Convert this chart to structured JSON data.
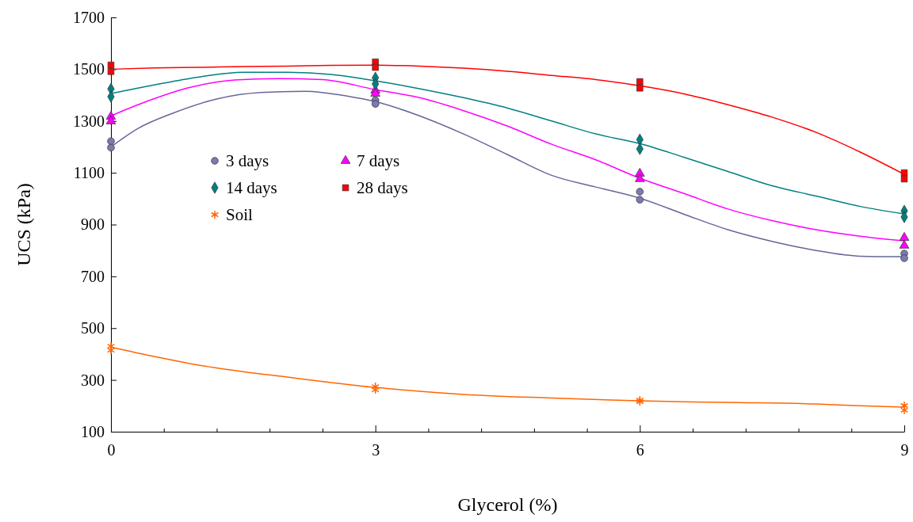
{
  "chart_data": {
    "type": "scatter",
    "xlabel": "Glycerol (%)",
    "ylabel": "UCS (kPa)",
    "xlim": [
      0,
      9
    ],
    "xticks": [
      0,
      {
        "value": 0.6,
        "label": null
      },
      {
        "value": 1.2,
        "label": null
      },
      {
        "value": 1.8,
        "label": null
      },
      {
        "value": 2.4,
        "label": null
      },
      3,
      {
        "value": 3.6,
        "label": null
      },
      {
        "value": 4.2,
        "label": null
      },
      {
        "value": 4.8,
        "label": null
      },
      {
        "value": 5.4,
        "label": null
      },
      6,
      {
        "value": 6.6,
        "label": null
      },
      {
        "value": 7.2,
        "label": null
      },
      {
        "value": 7.8,
        "label": null
      },
      {
        "value": 8.4,
        "label": null
      },
      9
    ],
    "ylim": [
      100,
      1700
    ],
    "yticks": [
      100,
      300,
      500,
      700,
      900,
      1100,
      1300,
      1500,
      1700
    ],
    "grid": false,
    "legend": "left",
    "series": [
      {
        "type": "line",
        "color": "#66669a",
        "marker": "none",
        "x": [
          0,
          0.3,
          0.7,
          1.2,
          1.7,
          2.2,
          2.7,
          3,
          3.5,
          4,
          4.5,
          5,
          5.5,
          6,
          6.5,
          7,
          7.5,
          8,
          8.5,
          9
        ],
        "values": [
          1200,
          1270,
          1330,
          1385,
          1410,
          1415,
          1395,
          1375,
          1320,
          1250,
          1170,
          1090,
          1045,
          1002,
          940,
          880,
          835,
          800,
          778,
          776
        ]
      },
      {
        "type": "line",
        "color": "#ff00ff",
        "marker": "none",
        "x": [
          0,
          0.4,
          0.9,
          1.4,
          1.9,
          2.4,
          3,
          3.5,
          4,
          4.5,
          5,
          5.5,
          6,
          6.5,
          7,
          7.5,
          8,
          8.5,
          9
        ],
        "values": [
          1320,
          1375,
          1430,
          1458,
          1464,
          1460,
          1421,
          1390,
          1340,
          1280,
          1210,
          1150,
          1079,
          1020,
          960,
          915,
          880,
          855,
          837
        ]
      },
      {
        "type": "line",
        "color": "#008080",
        "marker": "none",
        "x": [
          0,
          0.5,
          1,
          1.5,
          2,
          2.5,
          3,
          3.5,
          4,
          4.5,
          5,
          5.5,
          6,
          6.5,
          7,
          7.5,
          8,
          8.5,
          9
        ],
        "values": [
          1406,
          1440,
          1470,
          1488,
          1488,
          1480,
          1455,
          1425,
          1390,
          1350,
          1300,
          1250,
          1213,
          1160,
          1105,
          1050,
          1010,
          970,
          941
        ]
      },
      {
        "type": "line",
        "color": "#ff0000",
        "marker": "none",
        "x": [
          0,
          0.5,
          1,
          1.5,
          2,
          2.5,
          3,
          3.5,
          4,
          4.5,
          5,
          5.5,
          6,
          6.5,
          7,
          7.5,
          8,
          8.5,
          9
        ],
        "values": [
          1500,
          1505,
          1507,
          1510,
          1512,
          1515,
          1516,
          1512,
          1504,
          1492,
          1476,
          1460,
          1436,
          1405,
          1363,
          1315,
          1256,
          1180,
          1094
        ]
      },
      {
        "type": "line",
        "color": "#ff6600",
        "marker": "none",
        "x": [
          0,
          0.5,
          1,
          1.5,
          2,
          2.5,
          3,
          3.5,
          4,
          5,
          6,
          7,
          8,
          8.5,
          9
        ],
        "values": [
          427,
          390,
          357,
          332,
          311,
          290,
          271,
          256,
          244,
          230,
          219,
          213,
          207,
          200,
          195
        ]
      },
      {
        "name": "3 days",
        "color": "#7b7bb0",
        "marker": "circle",
        "x": [
          0,
          0,
          3,
          3,
          6,
          6,
          9,
          9
        ],
        "values": [
          1222,
          1197,
          1381,
          1366,
          1027,
          996,
          788,
          770
        ]
      },
      {
        "name": "7 days",
        "color": "#ff00ff",
        "marker": "triangle",
        "x": [
          0,
          0,
          3,
          3,
          6,
          6,
          9,
          9
        ],
        "values": [
          1317,
          1299,
          1418,
          1406,
          1097,
          1076,
          849,
          819
        ]
      },
      {
        "name": "14 days",
        "color": "#008080",
        "marker": "diamond",
        "x": [
          0,
          0,
          3,
          3,
          6,
          6,
          9,
          9
        ],
        "values": [
          1424,
          1394,
          1467,
          1443,
          1228,
          1192,
          953,
          929
        ]
      },
      {
        "name": "28 days",
        "color": "#ff0000",
        "marker": "square",
        "x": [
          0,
          0,
          3,
          3,
          6,
          6,
          9,
          9
        ],
        "values": [
          1516,
          1491,
          1528,
          1507,
          1452,
          1427,
          1100,
          1076
        ]
      },
      {
        "name": "Soil",
        "color": "#ff6600",
        "marker": "cross",
        "x": [
          0,
          0,
          3,
          3,
          6,
          6,
          9,
          9
        ],
        "values": [
          430,
          415,
          274,
          262,
          222,
          216,
          201,
          183
        ]
      }
    ]
  }
}
